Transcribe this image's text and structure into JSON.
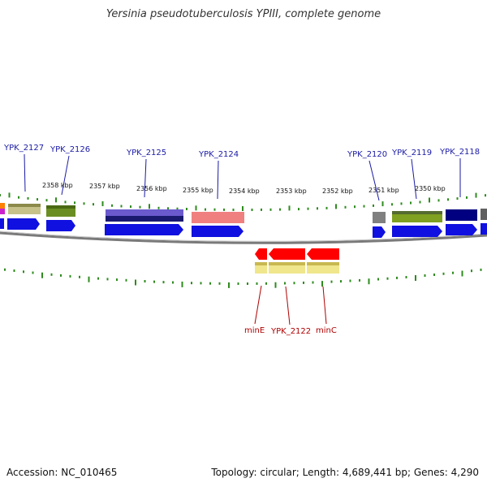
{
  "title": "Yersinia pseudotuberculosis YPIII, complete genome",
  "footer": {
    "accession": "Accession: NC_010465",
    "summary": "Topology: circular; Length: 4,689,441 bp; Genes: 4,290"
  },
  "colors": {
    "backbone": "#808080",
    "tick": "#2e8b1e",
    "cds": "#1010e0",
    "cds_reverse": "#ff0000",
    "label_forward": "#1a1aa6",
    "label_reverse": "#b00000"
  },
  "scale_labels": [
    {
      "text": "2358 kbp"
    },
    {
      "text": "2357 kbp"
    },
    {
      "text": "2356 kbp"
    },
    {
      "text": "2355 kbp"
    },
    {
      "text": "2354 kbp"
    },
    {
      "text": "2353 kbp"
    },
    {
      "text": "2352 kbp"
    },
    {
      "text": "2351 kbp"
    },
    {
      "text": "2350 kbp"
    }
  ],
  "gene_labels_forward": [
    {
      "text": "YPK_2127"
    },
    {
      "text": "YPK_2126"
    },
    {
      "text": "YPK_2125"
    },
    {
      "text": "YPK_2124"
    },
    {
      "text": "YPK_2120"
    },
    {
      "text": "YPK_2119"
    },
    {
      "text": "YPK_2118"
    }
  ],
  "gene_labels_reverse": [
    {
      "text": "minE"
    },
    {
      "text": "YPK_2122"
    },
    {
      "text": "minC"
    }
  ]
}
